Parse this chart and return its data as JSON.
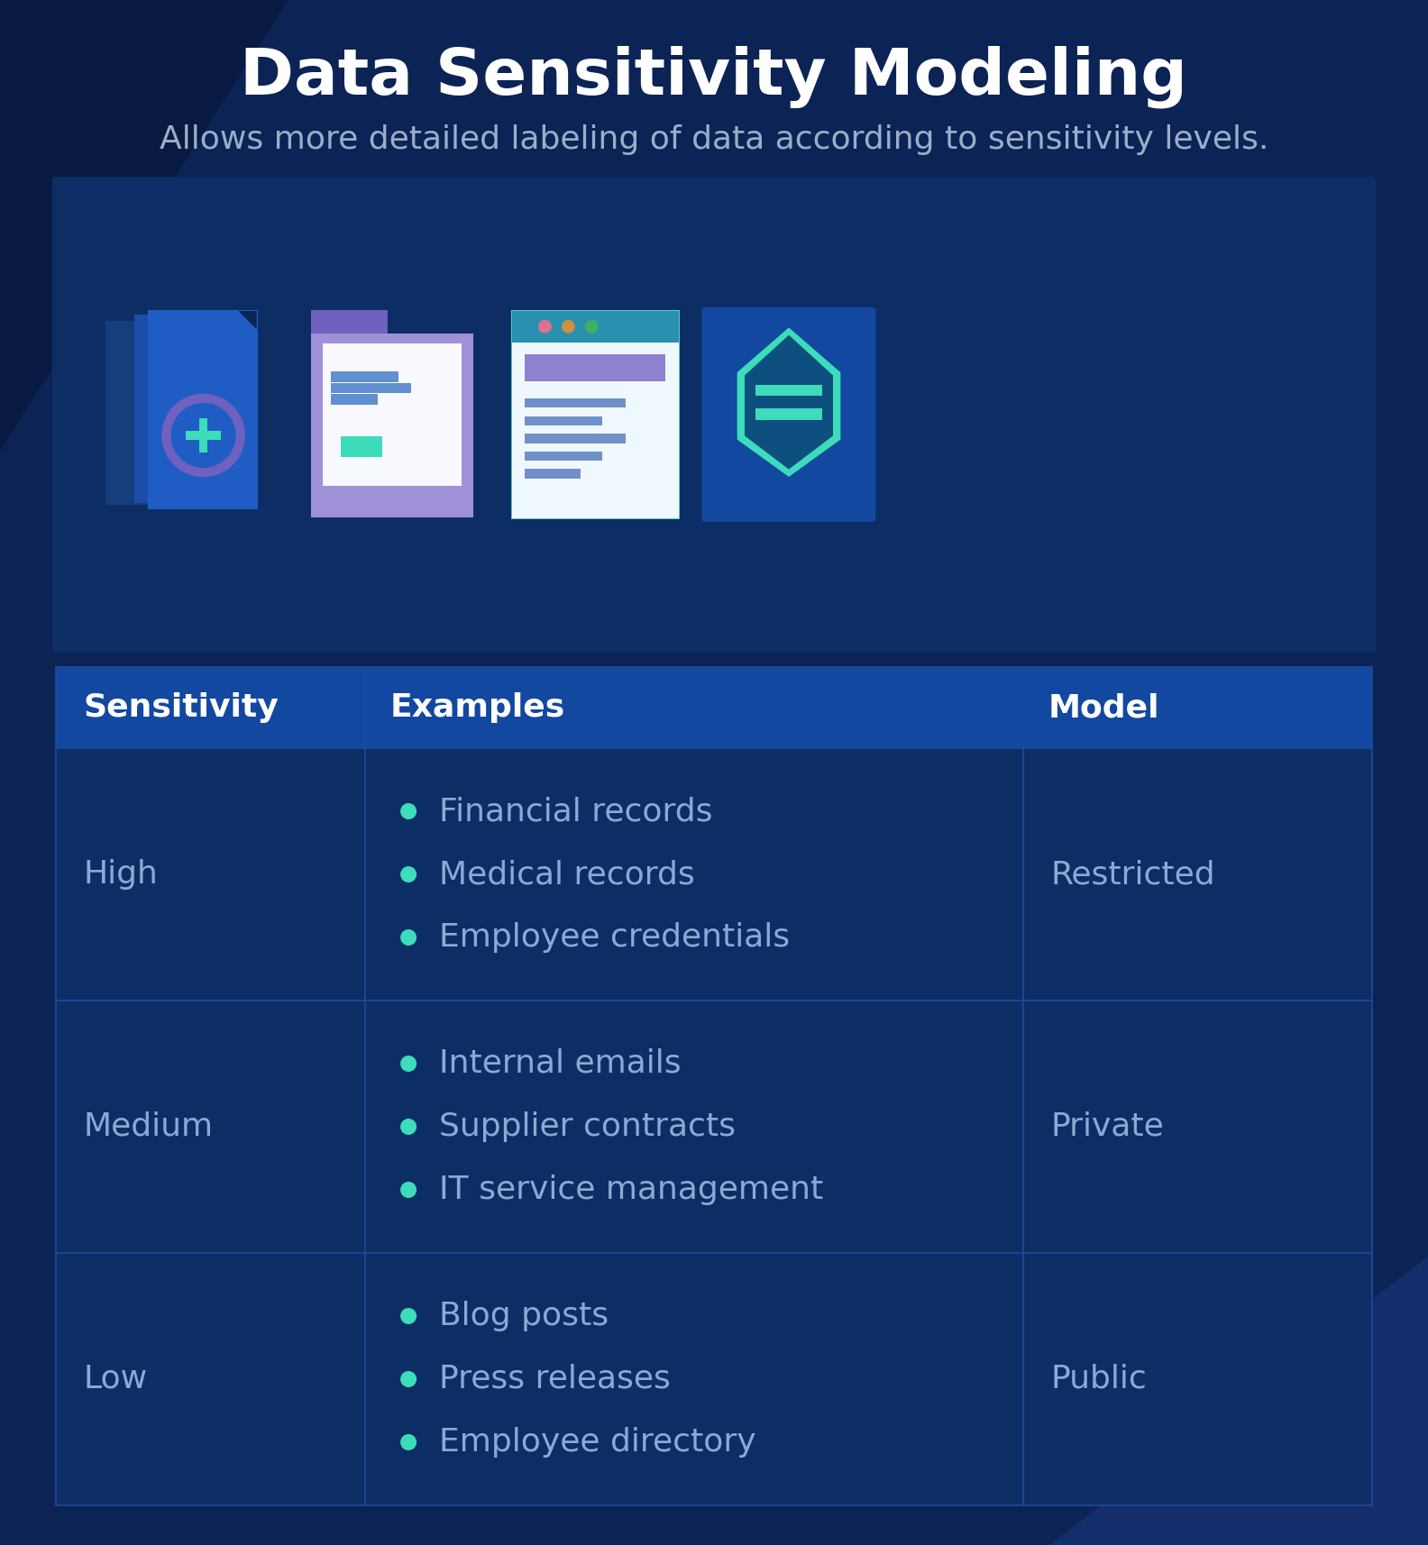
{
  "title": "Data Sensitivity Modeling",
  "subtitle": "Allows more detailed labeling of data according to sensitivity levels.",
  "bg_color": "#0c2356",
  "panel_color": "#0d2e65",
  "header_color": "#1248a0",
  "cell_color": "#0d2e65",
  "grid_color": "#1e4a9a",
  "title_color": "#ffffff",
  "subtitle_color": "#9aaec8",
  "header_text_color": "#ffffff",
  "cell_text_color": "#8aaad4",
  "bullet_color": "#3ddcba",
  "model_text_color": "#8aaad4",
  "col_headers": [
    "Sensitivity",
    "Examples",
    "Model"
  ],
  "rows": [
    {
      "sensitivity": "High",
      "examples": [
        "Financial records",
        "Medical records",
        "Employee credentials"
      ],
      "model": "Restricted"
    },
    {
      "sensitivity": "Medium",
      "examples": [
        "Internal emails",
        "Supplier contracts",
        "IT service management"
      ],
      "model": "Private"
    },
    {
      "sensitivity": "Low",
      "examples": [
        "Blog posts",
        "Press releases",
        "Employee directory"
      ],
      "model": "Public"
    }
  ]
}
